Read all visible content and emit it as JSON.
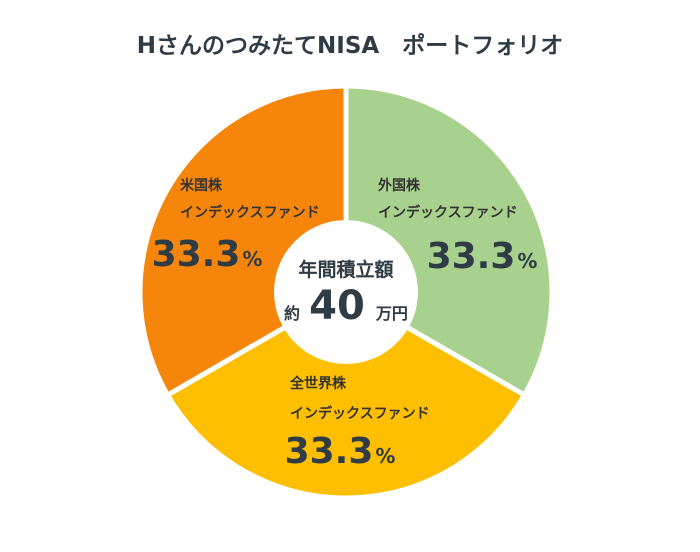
{
  "chart_data": {
    "type": "pie",
    "title": "HさんのつみたてNISA　ポートフォリオ",
    "slices": [
      {
        "line1": "外国株",
        "line2": "インデックスファンド",
        "value": 33.3,
        "value_text": "33.3",
        "unit": "%",
        "color": "#a8d18e"
      },
      {
        "line1": "全世界株",
        "line2": "インデックスファンド",
        "value": 33.3,
        "value_text": "33.3",
        "unit": "%",
        "color": "#fdbf00"
      },
      {
        "line1": "米国株",
        "line2": "インデックスファンド",
        "value": 33.3,
        "value_text": "33.3",
        "unit": "%",
        "color": "#f6860b"
      }
    ],
    "center": {
      "label": "年間積立額",
      "prefix": "約",
      "amount": "40",
      "unit": "万円"
    }
  }
}
